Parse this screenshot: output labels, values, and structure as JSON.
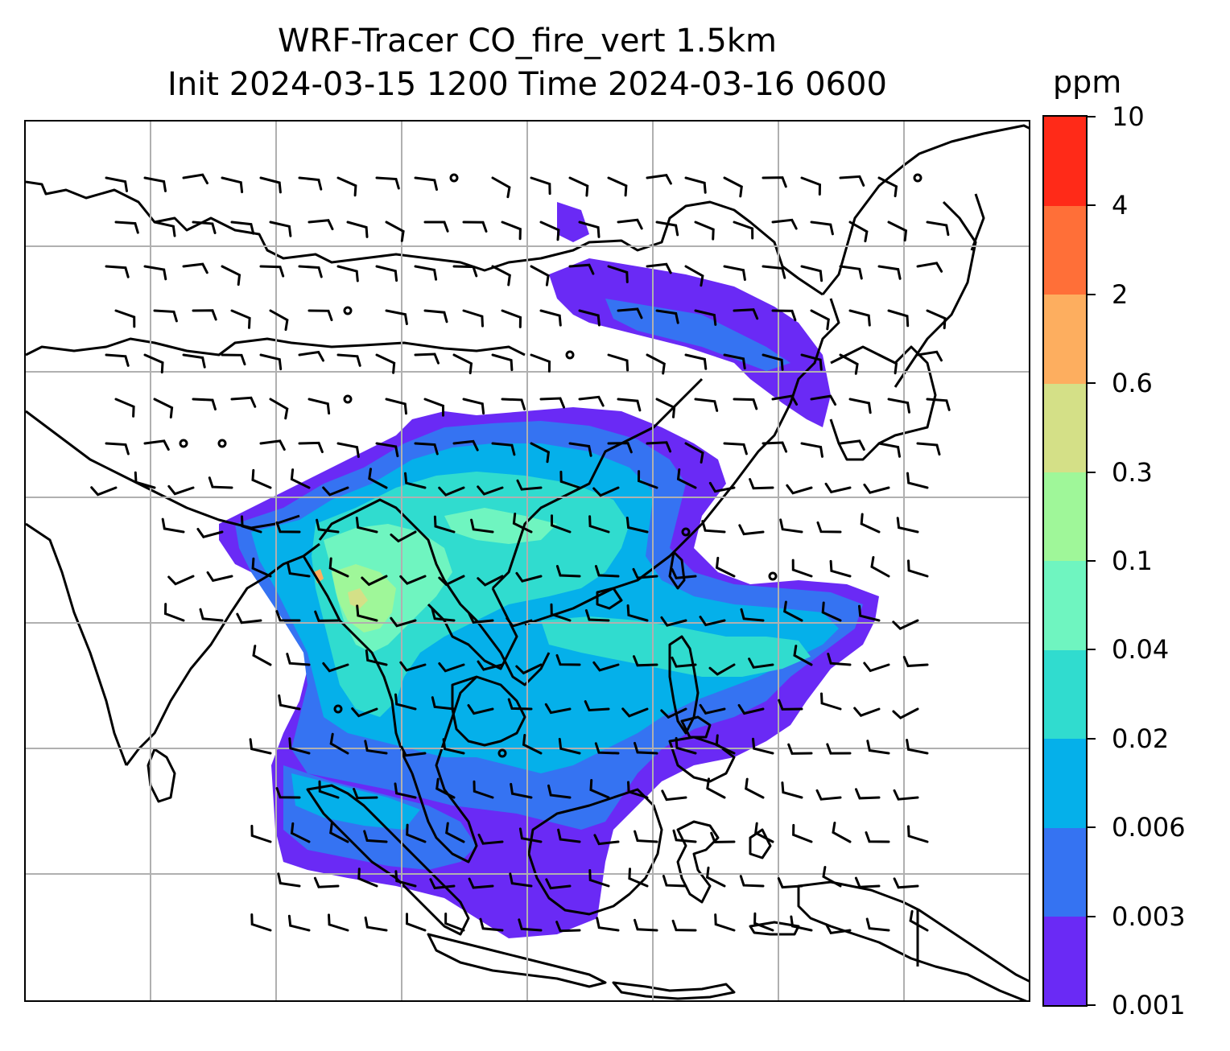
{
  "title": {
    "line1": "WRF-Tracer CO_fire_vert 1.5km",
    "line2": "Init 2024-03-15 1200 Time 2024-03-16 0600"
  },
  "colorbar": {
    "unit": "ppm",
    "levels": [
      "0.001",
      "0.003",
      "0.006",
      "0.02",
      "0.04",
      "0.1",
      "0.3",
      "0.6",
      "2",
      "4",
      "10"
    ],
    "colors": [
      "#6a2af5",
      "#3573f2",
      "#05b0ea",
      "#30dccf",
      "#6ff5c0",
      "#9ff799",
      "#d4e087",
      "#fdae5f",
      "#ff6f38",
      "#ff2a18"
    ]
  },
  "map": {
    "gridlines": true,
    "coastline_color": "#000000",
    "gridline_color": "#b0b0b0",
    "overlay": "wind barbs"
  }
}
